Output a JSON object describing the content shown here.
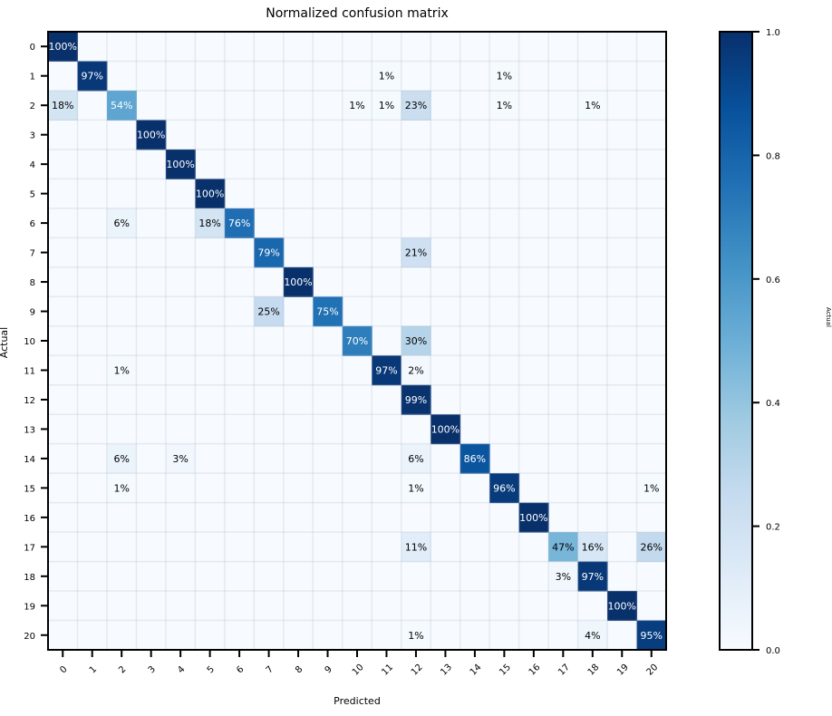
{
  "chart_data": {
    "type": "heatmap",
    "title": "Normalized confusion matrix",
    "xlabel": "Predicted",
    "ylabel": "Actual",
    "colorbar_label": "Actual",
    "colormap": "Blues",
    "colormap_stops": [
      "#f7fbff",
      "#deebf7",
      "#c6dbef",
      "#9ecae1",
      "#6baed6",
      "#4292c6",
      "#2171b5",
      "#08519c",
      "#08306b"
    ],
    "value_range": [
      0,
      1
    ],
    "colorbar_ticks": [
      "0.0",
      "0.2",
      "0.4",
      "0.6",
      "0.8",
      "1.0"
    ],
    "x_tick_labels": [
      "0",
      "1",
      "2",
      "3",
      "4",
      "5",
      "6",
      "7",
      "8",
      "9",
      "10",
      "11",
      "12",
      "13",
      "14",
      "15",
      "16",
      "17",
      "18",
      "19",
      "20"
    ],
    "y_tick_labels": [
      "0",
      "1",
      "2",
      "3",
      "4",
      "5",
      "6",
      "7",
      "8",
      "9",
      "10",
      "11",
      "12",
      "13",
      "14",
      "15",
      "16",
      "17",
      "18",
      "19",
      "20"
    ],
    "grid": true,
    "cells": [
      {
        "actual": 0,
        "predicted": 0,
        "value": 1.0,
        "label": "100%"
      },
      {
        "actual": 1,
        "predicted": 1,
        "value": 0.97,
        "label": "97%"
      },
      {
        "actual": 1,
        "predicted": 11,
        "value": 0.01,
        "label": "1%"
      },
      {
        "actual": 1,
        "predicted": 15,
        "value": 0.01,
        "label": "1%"
      },
      {
        "actual": 2,
        "predicted": 0,
        "value": 0.18,
        "label": "18%"
      },
      {
        "actual": 2,
        "predicted": 2,
        "value": 0.54,
        "label": "54%"
      },
      {
        "actual": 2,
        "predicted": 10,
        "value": 0.01,
        "label": "1%"
      },
      {
        "actual": 2,
        "predicted": 11,
        "value": 0.01,
        "label": "1%"
      },
      {
        "actual": 2,
        "predicted": 12,
        "value": 0.23,
        "label": "23%"
      },
      {
        "actual": 2,
        "predicted": 15,
        "value": 0.01,
        "label": "1%"
      },
      {
        "actual": 2,
        "predicted": 18,
        "value": 0.01,
        "label": "1%"
      },
      {
        "actual": 3,
        "predicted": 3,
        "value": 1.0,
        "label": "100%"
      },
      {
        "actual": 4,
        "predicted": 4,
        "value": 1.0,
        "label": "100%"
      },
      {
        "actual": 5,
        "predicted": 5,
        "value": 1.0,
        "label": "100%"
      },
      {
        "actual": 6,
        "predicted": 2,
        "value": 0.06,
        "label": "6%"
      },
      {
        "actual": 6,
        "predicted": 5,
        "value": 0.18,
        "label": "18%"
      },
      {
        "actual": 6,
        "predicted": 6,
        "value": 0.76,
        "label": "76%"
      },
      {
        "actual": 7,
        "predicted": 7,
        "value": 0.79,
        "label": "79%"
      },
      {
        "actual": 7,
        "predicted": 12,
        "value": 0.21,
        "label": "21%"
      },
      {
        "actual": 8,
        "predicted": 8,
        "value": 1.0,
        "label": "100%"
      },
      {
        "actual": 9,
        "predicted": 7,
        "value": 0.25,
        "label": "25%"
      },
      {
        "actual": 9,
        "predicted": 9,
        "value": 0.75,
        "label": "75%"
      },
      {
        "actual": 10,
        "predicted": 10,
        "value": 0.7,
        "label": "70%"
      },
      {
        "actual": 10,
        "predicted": 12,
        "value": 0.3,
        "label": "30%"
      },
      {
        "actual": 11,
        "predicted": 2,
        "value": 0.01,
        "label": "1%"
      },
      {
        "actual": 11,
        "predicted": 11,
        "value": 0.97,
        "label": "97%"
      },
      {
        "actual": 11,
        "predicted": 12,
        "value": 0.02,
        "label": "2%"
      },
      {
        "actual": 12,
        "predicted": 12,
        "value": 0.99,
        "label": "99%"
      },
      {
        "actual": 13,
        "predicted": 13,
        "value": 1.0,
        "label": "100%"
      },
      {
        "actual": 14,
        "predicted": 2,
        "value": 0.06,
        "label": "6%"
      },
      {
        "actual": 14,
        "predicted": 4,
        "value": 0.03,
        "label": "3%"
      },
      {
        "actual": 14,
        "predicted": 12,
        "value": 0.06,
        "label": "6%"
      },
      {
        "actual": 14,
        "predicted": 14,
        "value": 0.86,
        "label": "86%"
      },
      {
        "actual": 15,
        "predicted": 2,
        "value": 0.01,
        "label": "1%"
      },
      {
        "actual": 15,
        "predicted": 12,
        "value": 0.01,
        "label": "1%"
      },
      {
        "actual": 15,
        "predicted": 15,
        "value": 0.96,
        "label": "96%"
      },
      {
        "actual": 15,
        "predicted": 20,
        "value": 0.01,
        "label": "1%"
      },
      {
        "actual": 16,
        "predicted": 16,
        "value": 1.0,
        "label": "100%"
      },
      {
        "actual": 17,
        "predicted": 12,
        "value": 0.11,
        "label": "11%"
      },
      {
        "actual": 17,
        "predicted": 17,
        "value": 0.47,
        "label": "47%"
      },
      {
        "actual": 17,
        "predicted": 18,
        "value": 0.16,
        "label": "16%"
      },
      {
        "actual": 17,
        "predicted": 20,
        "value": 0.26,
        "label": "26%"
      },
      {
        "actual": 18,
        "predicted": 17,
        "value": 0.03,
        "label": "3%"
      },
      {
        "actual": 18,
        "predicted": 18,
        "value": 0.97,
        "label": "97%"
      },
      {
        "actual": 19,
        "predicted": 19,
        "value": 1.0,
        "label": "100%"
      },
      {
        "actual": 20,
        "predicted": 12,
        "value": 0.01,
        "label": "1%"
      },
      {
        "actual": 20,
        "predicted": 18,
        "value": 0.04,
        "label": "4%"
      },
      {
        "actual": 20,
        "predicted": 20,
        "value": 0.95,
        "label": "95%"
      }
    ]
  }
}
